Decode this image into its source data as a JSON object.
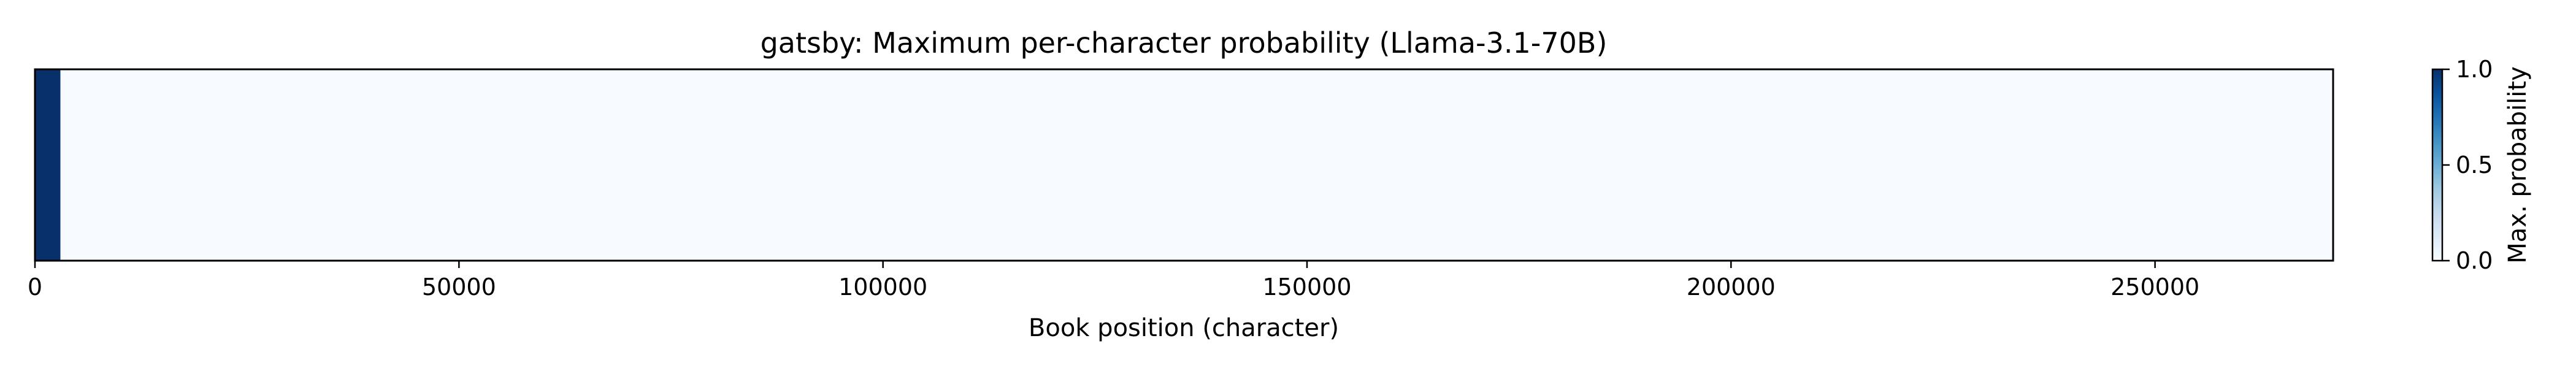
{
  "chart_data": {
    "type": "heatmap",
    "title": "gatsby: Maximum per-character probability (Llama-3.1-70B)",
    "xlabel": "Book position (character)",
    "ylabel": "",
    "xlim": [
      0,
      271000
    ],
    "xticks": [
      0,
      50000,
      100000,
      150000,
      200000,
      250000
    ],
    "xtick_labels": [
      "0",
      "50000",
      "100000",
      "150000",
      "200000",
      "250000"
    ],
    "grid": false,
    "colormap": "Blues",
    "segments": [
      {
        "start": 0,
        "end": 3000,
        "value": 1.0
      },
      {
        "start": 3000,
        "end": 271000,
        "value": 0.0
      }
    ],
    "colorbar": {
      "label": "Max. probability",
      "range": [
        0.0,
        1.0
      ],
      "ticks": [
        0.0,
        0.5,
        1.0
      ],
      "tick_labels": [
        "0.0",
        "0.5",
        "1.0"
      ],
      "placement": "right"
    }
  }
}
